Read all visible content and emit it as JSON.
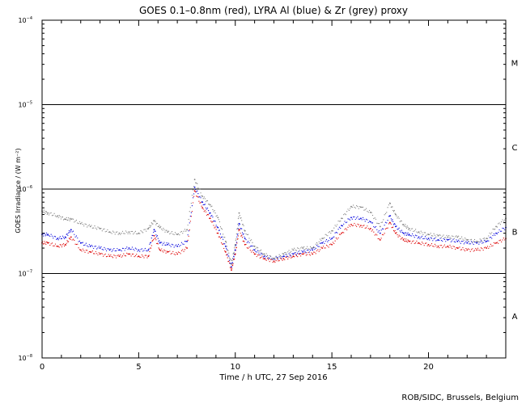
{
  "chart_data": {
    "type": "scatter",
    "title": "GOES 0.1–0.8nm (red), LYRA Al (blue) & Zr (grey) proxy",
    "xlabel": "Time / h UTC, 27 Sep 2016",
    "ylabel": "GOES Irradiance / (W m⁻²)",
    "xlim": [
      0,
      24
    ],
    "ylim_log10": [
      -8,
      -4
    ],
    "yscale": "log",
    "x_ticks": [
      {
        "value": 0,
        "label": "0"
      },
      {
        "value": 5,
        "label": "5"
      },
      {
        "value": 10,
        "label": "10"
      },
      {
        "value": 15,
        "label": "15"
      },
      {
        "value": 20,
        "label": "20"
      }
    ],
    "y_ticks": [
      {
        "exp": -8,
        "base": "10",
        "power": "−8"
      },
      {
        "exp": -7,
        "base": "10",
        "power": "−7"
      },
      {
        "exp": -6,
        "base": "10",
        "power": "−6"
      },
      {
        "exp": -5,
        "base": "10",
        "power": "−5"
      },
      {
        "exp": -4,
        "base": "10",
        "power": "−4"
      }
    ],
    "class_lines": [
      -7,
      -6,
      -5
    ],
    "flare_classes": [
      {
        "label": "M",
        "log_center": -4.5
      },
      {
        "label": "C",
        "log_center": -5.5
      },
      {
        "label": "B",
        "log_center": -6.5
      },
      {
        "label": "A",
        "log_center": -7.5
      }
    ],
    "series": [
      {
        "name": "GOES 0.1–0.8nm",
        "color": "#dd0000",
        "x": [
          0,
          0.3,
          0.8,
          1.2,
          1.5,
          2,
          2.5,
          3,
          3.5,
          4,
          4.5,
          5,
          5.5,
          5.8,
          6.1,
          6.5,
          7,
          7.5,
          7.9,
          8.3,
          8.7,
          9.1,
          9.5,
          9.8,
          10.0,
          10.2,
          10.5,
          11,
          11.5,
          12,
          12.5,
          13,
          13.5,
          14,
          14.5,
          15,
          15.5,
          16,
          16.5,
          17,
          17.5,
          18,
          18.3,
          18.7,
          19,
          19.5,
          20,
          20.5,
          21,
          21.5,
          22,
          22.5,
          23,
          23.5,
          24
        ],
        "values": [
          2.3e-07,
          2.3e-07,
          2.1e-07,
          2.2e-07,
          2.7e-07,
          1.9e-07,
          1.8e-07,
          1.7e-07,
          1.6e-07,
          1.6e-07,
          1.7e-07,
          1.6e-07,
          1.6e-07,
          2.8e-07,
          1.9e-07,
          1.8e-07,
          1.7e-07,
          2e-07,
          9.5e-07,
          6e-07,
          4.5e-07,
          3e-07,
          1.8e-07,
          1.1e-07,
          1.7e-07,
          3.3e-07,
          2.2e-07,
          1.7e-07,
          1.5e-07,
          1.4e-07,
          1.5e-07,
          1.6e-07,
          1.7e-07,
          1.7e-07,
          2e-07,
          2.2e-07,
          3e-07,
          3.8e-07,
          3.7e-07,
          3.4e-07,
          2.5e-07,
          4e-07,
          3e-07,
          2.5e-07,
          2.4e-07,
          2.3e-07,
          2.2e-07,
          2.1e-07,
          2.1e-07,
          2e-07,
          1.9e-07,
          1.9e-07,
          2e-07,
          2.3e-07,
          2.6e-07
        ]
      },
      {
        "name": "LYRA Al proxy",
        "color": "#0000dd",
        "x": [
          0,
          0.3,
          0.8,
          1.2,
          1.5,
          2,
          2.5,
          3,
          3.5,
          4,
          4.5,
          5,
          5.5,
          5.8,
          6.1,
          6.5,
          7,
          7.5,
          7.9,
          8.3,
          8.7,
          9.1,
          9.5,
          9.8,
          10.0,
          10.2,
          10.5,
          11,
          11.5,
          12,
          12.5,
          13,
          13.5,
          14,
          14.5,
          15,
          15.5,
          16,
          16.5,
          17,
          17.5,
          18,
          18.3,
          18.7,
          19,
          19.5,
          20,
          20.5,
          21,
          21.5,
          22,
          22.5,
          23,
          23.5,
          24
        ],
        "values": [
          2.9e-07,
          2.9e-07,
          2.6e-07,
          2.7e-07,
          3.3e-07,
          2.3e-07,
          2.1e-07,
          2e-07,
          1.9e-07,
          1.9e-07,
          2e-07,
          1.9e-07,
          1.9e-07,
          3.3e-07,
          2.3e-07,
          2.2e-07,
          2.1e-07,
          2.4e-07,
          1.05e-06,
          7e-07,
          5.2e-07,
          3.5e-07,
          2.1e-07,
          1.2e-07,
          1.9e-07,
          3.9e-07,
          2.6e-07,
          1.9e-07,
          1.6e-07,
          1.5e-07,
          1.6e-07,
          1.7e-07,
          1.8e-07,
          1.9e-07,
          2.3e-07,
          2.6e-07,
          3.7e-07,
          4.6e-07,
          4.5e-07,
          4.1e-07,
          3e-07,
          4.8e-07,
          3.6e-07,
          3e-07,
          2.9e-07,
          2.7e-07,
          2.6e-07,
          2.5e-07,
          2.5e-07,
          2.4e-07,
          2.3e-07,
          2.3e-07,
          2.4e-07,
          3e-07,
          3.5e-07
        ]
      },
      {
        "name": "LYRA Zr proxy",
        "color": "#808080",
        "x": [
          0,
          0.3,
          0.8,
          1.2,
          1.5,
          2,
          2.5,
          3,
          3.5,
          4,
          4.5,
          5,
          5.5,
          5.8,
          6.1,
          6.5,
          7,
          7.5,
          7.9,
          8.3,
          8.7,
          9.1,
          9.5,
          9.8,
          10.0,
          10.2,
          10.5,
          11,
          11.5,
          12,
          12.5,
          13,
          13.5,
          14,
          14.5,
          15,
          15.5,
          16,
          16.5,
          17,
          17.5,
          18,
          18.3,
          18.7,
          19,
          19.5,
          20,
          20.5,
          21,
          21.5,
          22,
          22.5,
          23,
          23.5,
          24
        ],
        "values": [
          5.5e-07,
          5.2e-07,
          4.8e-07,
          4.4e-07,
          4.4e-07,
          3.9e-07,
          3.6e-07,
          3.4e-07,
          3.1e-07,
          3e-07,
          3.1e-07,
          3e-07,
          3.4e-07,
          4.2e-07,
          3.5e-07,
          3.1e-07,
          2.9e-07,
          3.3e-07,
          1.3e-06,
          8.2e-07,
          6.5e-07,
          4.6e-07,
          2.4e-07,
          1.3e-07,
          2.2e-07,
          5.2e-07,
          3.2e-07,
          2.1e-07,
          1.7e-07,
          1.5e-07,
          1.7e-07,
          1.9e-07,
          2e-07,
          2e-07,
          2.6e-07,
          3.2e-07,
          4.5e-07,
          6.2e-07,
          6.1e-07,
          5.3e-07,
          3.6e-07,
          6.8e-07,
          5e-07,
          3.8e-07,
          3.4e-07,
          3.1e-07,
          2.9e-07,
          2.8e-07,
          2.7e-07,
          2.7e-07,
          2.5e-07,
          2.4e-07,
          2.6e-07,
          3.6e-07,
          4.5e-07
        ]
      }
    ]
  },
  "credit": "ROB/SIDC, Brussels, Belgium"
}
